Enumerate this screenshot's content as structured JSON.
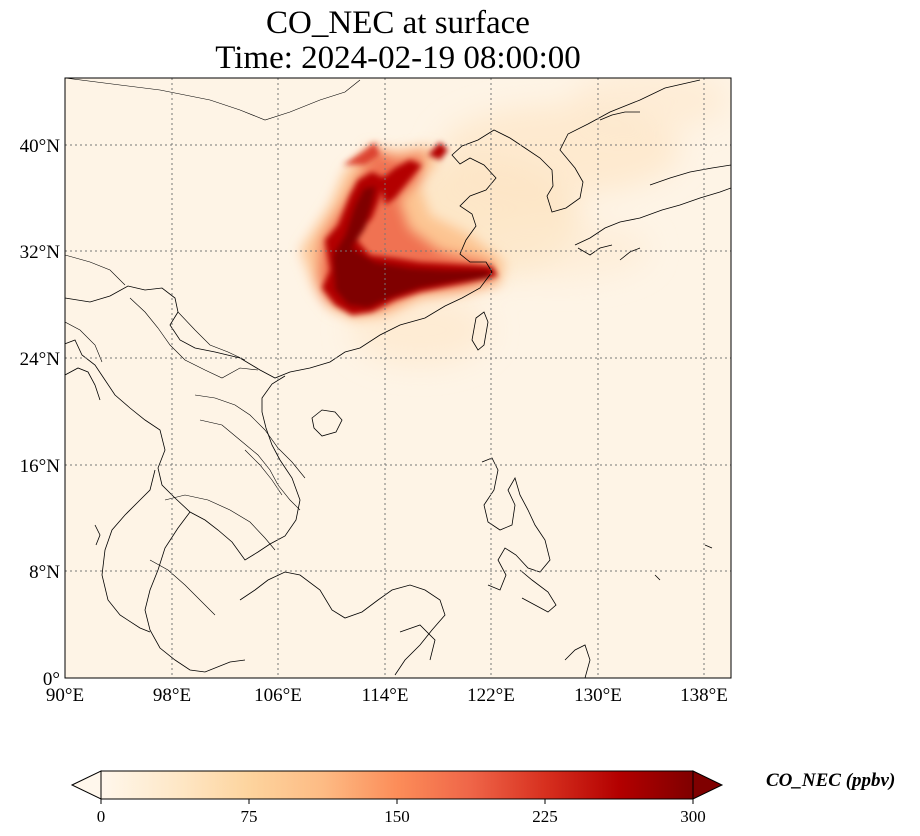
{
  "title": {
    "line1": "CO_NEC at surface",
    "line2": "Time: 2024-02-19 08:00:00"
  },
  "map": {
    "variable": "CO_NEC",
    "level": "surface",
    "extent": {
      "lon_min": 90,
      "lon_max": 140,
      "lat_min": 0,
      "lat_max": 45
    },
    "grid": true,
    "lat_ticks": [
      "40°N",
      "32°N",
      "24°N",
      "16°N",
      "8°N",
      "0°"
    ],
    "lon_ticks": [
      "90°E",
      "98°E",
      "106°E",
      "114°E",
      "122°E",
      "130°E",
      "138°E"
    ]
  },
  "colorbar": {
    "label": "CO_NEC (ppbv)",
    "ticks": [
      "0",
      "75",
      "150",
      "225",
      "300"
    ],
    "colormap": "OrRd",
    "colors": [
      "#fff7ec",
      "#fee8c8",
      "#fdd49e",
      "#fdbb84",
      "#fc8d59",
      "#ef6548",
      "#d7301f",
      "#b30000",
      "#7f0000"
    ],
    "extend": "both"
  }
}
